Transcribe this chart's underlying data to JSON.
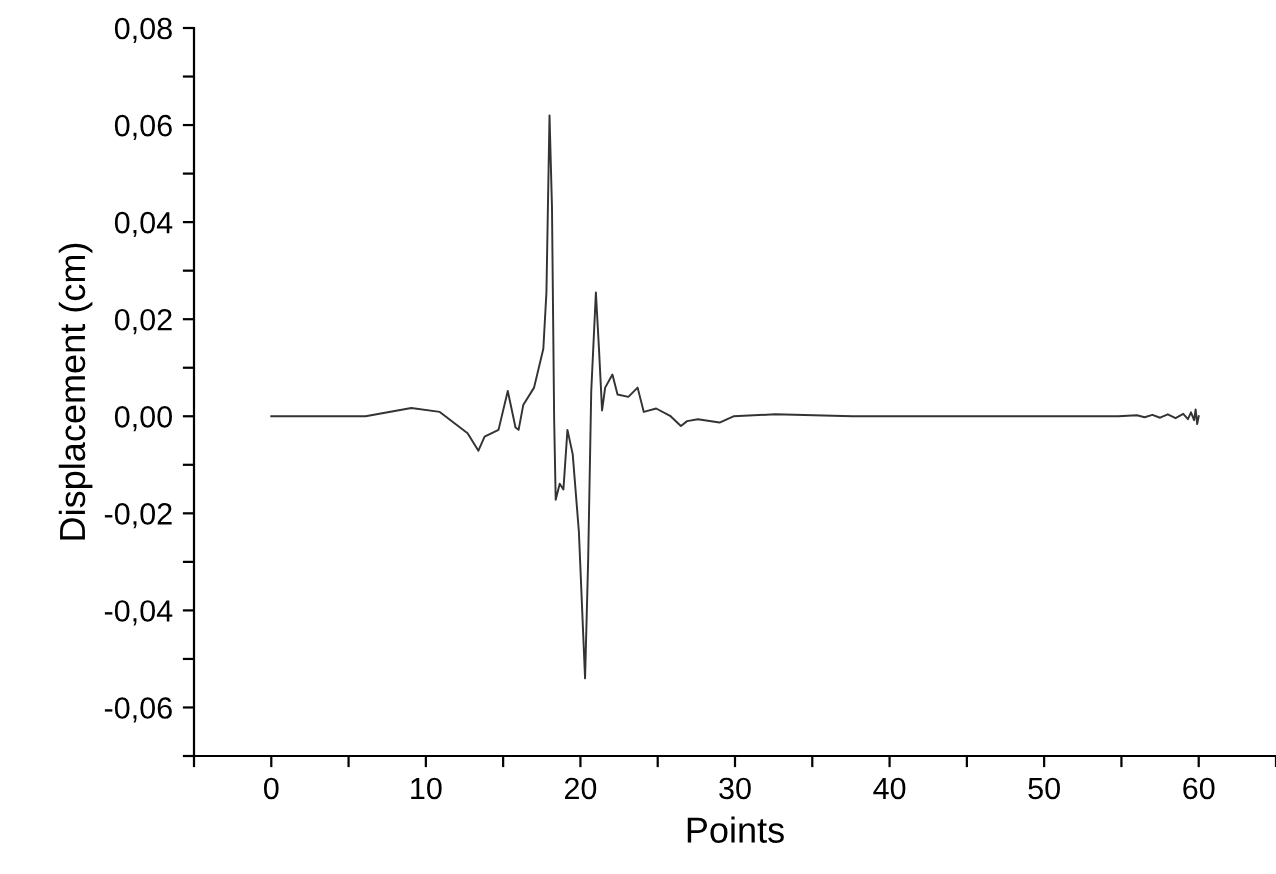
{
  "chart_data": {
    "type": "line",
    "xlabel": "Points",
    "ylabel": "Displacement (cm)",
    "x": [
      0,
      6.1,
      9.06,
      10.9,
      12.7,
      13.4,
      13.8,
      14.7,
      15.3,
      15.8,
      16.0,
      16.3,
      17.0,
      17.6,
      17.8,
      18.0,
      18.16,
      18.3,
      18.4,
      18.66,
      18.9,
      19.16,
      19.5,
      19.9,
      20.3,
      20.5,
      20.7,
      21.0,
      21.2,
      21.4,
      21.6,
      22.07,
      22.4,
      23.1,
      23.7,
      24.1,
      24.9,
      25.8,
      26.5,
      26.9,
      27.6,
      29.0,
      29.9,
      32.6,
      37.6,
      54.8,
      56.0,
      56.5,
      57.0,
      57.5,
      58.0,
      58.5,
      59.0,
      59.3,
      59.5,
      59.7,
      59.8,
      59.9,
      60.0
    ],
    "series": [
      {
        "color": "#333333",
        "values": [
          0,
          0,
          0.0017,
          0.0009,
          -0.0035,
          -0.0071,
          -0.0042,
          -0.0028,
          0.0052,
          -0.0023,
          -0.0028,
          0.0023,
          0.0059,
          0.0139,
          0.0255,
          0.062,
          0.043,
          -0.0006,
          -0.0172,
          -0.0139,
          -0.0151,
          -0.0028,
          -0.0078,
          -0.0238,
          -0.054,
          -0.0296,
          0.0052,
          0.0255,
          0.0139,
          0.0012,
          0.0059,
          0.0086,
          0.0045,
          0.004,
          0.0059,
          0.0009,
          0.0016,
          0.0001,
          -0.002,
          -0.001,
          -0.0006,
          -0.0013,
          0,
          0.0004,
          0,
          0,
          0.0002,
          -0.0002,
          0.0003,
          -0.0003,
          0.0004,
          -0.0004,
          0.0005,
          -0.0006,
          0.0008,
          -0.0008,
          0.0014,
          -0.0016,
          0
        ]
      }
    ],
    "xlim": [
      -5,
      65
    ],
    "xticks": [
      {
        "value": -5,
        "label": null
      },
      0,
      {
        "value": 5,
        "label": null
      },
      10,
      {
        "value": 15,
        "label": null
      },
      20,
      {
        "value": 25,
        "label": null
      },
      30,
      {
        "value": 35,
        "label": null
      },
      40,
      {
        "value": 45,
        "label": null
      },
      50,
      {
        "value": 55,
        "label": null
      },
      60,
      {
        "value": 65,
        "label": null
      }
    ],
    "ylim": [
      -0.07,
      0.08
    ],
    "yticks": [
      {
        "value": -0.07,
        "label": null
      },
      {
        "value": -0.06,
        "label": "-0,06"
      },
      {
        "value": -0.05,
        "label": null
      },
      {
        "value": -0.04,
        "label": "-0,04"
      },
      {
        "value": -0.03,
        "label": null
      },
      {
        "value": -0.02,
        "label": "-0,02"
      },
      {
        "value": -0.01,
        "label": null
      },
      {
        "value": 0,
        "label": "0,00"
      },
      {
        "value": 0.01,
        "label": null
      },
      {
        "value": 0.02,
        "label": "0,02"
      },
      {
        "value": 0.03,
        "label": null
      },
      {
        "value": 0.04,
        "label": "0,04"
      },
      {
        "value": 0.05,
        "label": null
      },
      {
        "value": 0.06,
        "label": "0,06"
      },
      {
        "value": 0.07,
        "label": null
      },
      {
        "value": 0.08,
        "label": "0,08"
      }
    ],
    "grid": false,
    "legend": false,
    "marker": "none",
    "line_style": "solid"
  }
}
